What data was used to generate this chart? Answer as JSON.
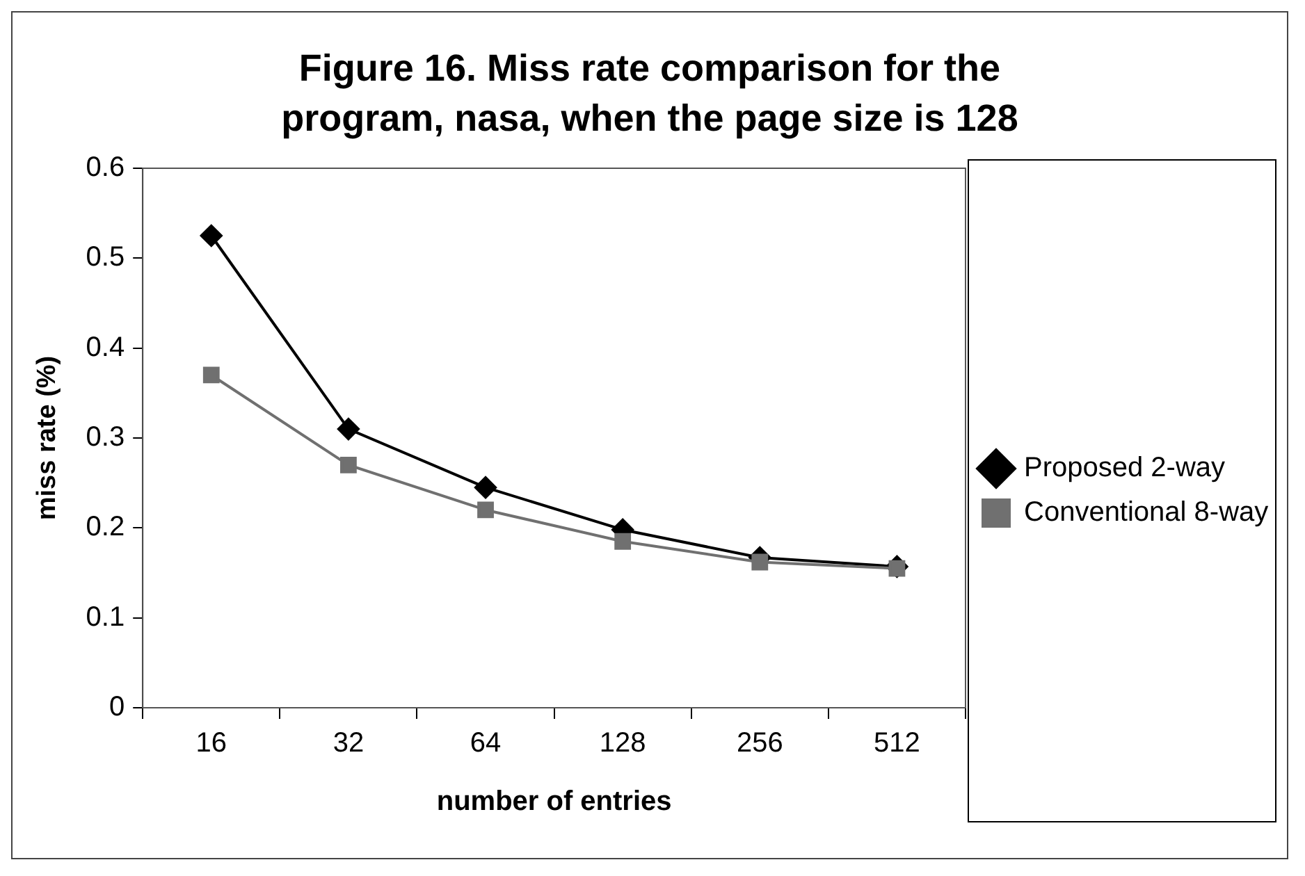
{
  "chart_data": {
    "type": "line",
    "title": "Figure 16. Miss rate comparison for the program, nasa, when the page size is 128",
    "xlabel": "number of entries",
    "ylabel": "miss rate (%)",
    "categories": [
      "16",
      "32",
      "64",
      "128",
      "256",
      "512"
    ],
    "series": [
      {
        "name": "Proposed 2-way",
        "color": "#000000",
        "marker": "diamond",
        "values": [
          0.525,
          0.31,
          0.245,
          0.198,
          0.167,
          0.157
        ]
      },
      {
        "name": "Conventional 8-way",
        "color": "#707070",
        "marker": "square",
        "values": [
          0.37,
          0.27,
          0.22,
          0.185,
          0.162,
          0.155
        ]
      }
    ],
    "ylim": [
      0,
      0.6
    ],
    "yticks": [
      0,
      0.1,
      0.2,
      0.3,
      0.4,
      0.5,
      0.6
    ],
    "grid": false,
    "legend": "right"
  }
}
